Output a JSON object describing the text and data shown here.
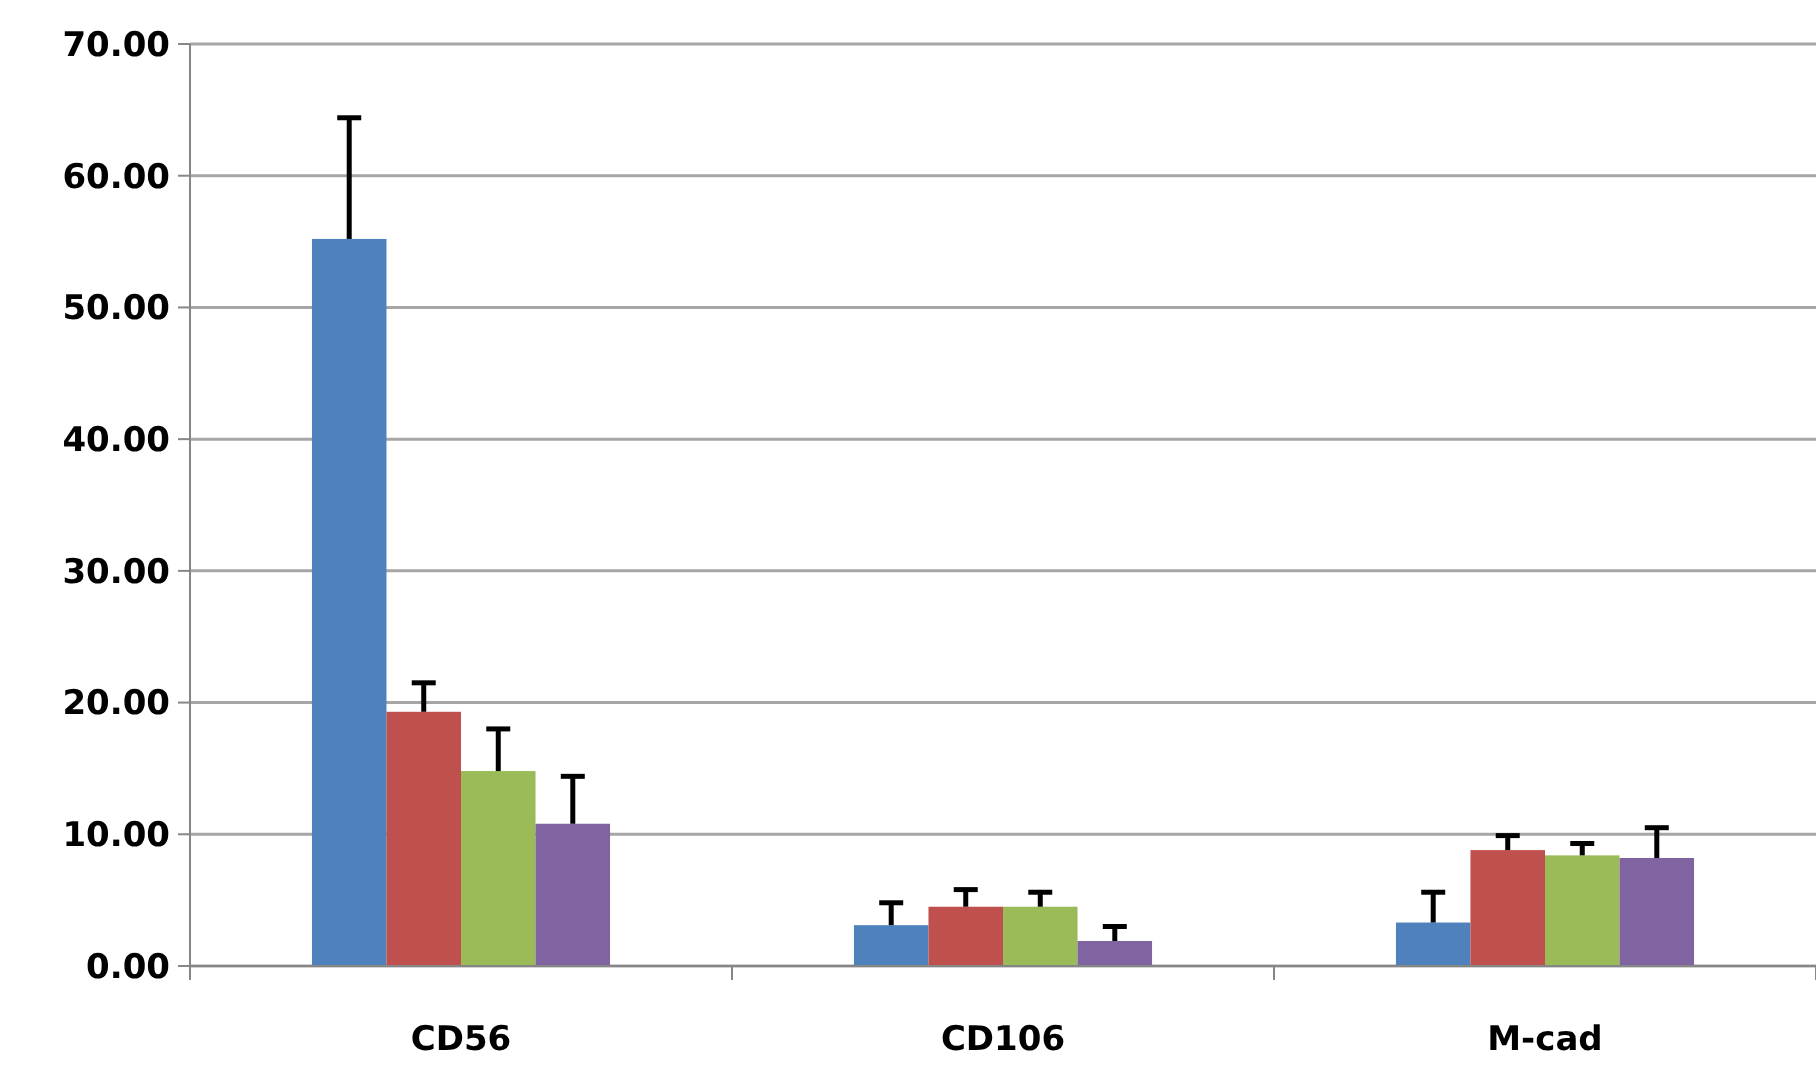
{
  "chart_data": {
    "type": "bar",
    "categories": [
      "CD56",
      "CD106",
      "M-cad"
    ],
    "series": [
      {
        "color": "#4f81bd",
        "values": [
          55.2,
          3.1,
          3.3
        ],
        "errors": [
          [
            55.2,
            64.4
          ],
          [
            3.1,
            4.8
          ],
          [
            3.3,
            5.6
          ]
        ]
      },
      {
        "color": "#c0504d",
        "values": [
          19.3,
          4.5,
          8.8
        ],
        "errors": [
          [
            19.3,
            21.5
          ],
          [
            4.5,
            5.8
          ],
          [
            8.8,
            9.9
          ]
        ]
      },
      {
        "color": "#9bbb59",
        "values": [
          14.8,
          4.5,
          8.4
        ],
        "errors": [
          [
            14.8,
            18.0
          ],
          [
            4.5,
            5.6
          ],
          [
            8.4,
            9.3
          ]
        ]
      },
      {
        "color": "#8064a2",
        "values": [
          10.8,
          1.9,
          8.2
        ],
        "errors": [
          [
            10.8,
            14.4
          ],
          [
            1.9,
            3.0
          ],
          [
            8.2,
            10.5
          ]
        ]
      }
    ],
    "ylim": [
      0,
      70
    ],
    "yticks": [
      {
        "value": 0,
        "label": "0.00"
      },
      {
        "value": 10,
        "label": "10.00"
      },
      {
        "value": 20,
        "label": "20.00"
      },
      {
        "value": 30,
        "label": "30.00"
      },
      {
        "value": 40,
        "label": "40.00"
      },
      {
        "value": 50,
        "label": "50.00"
      },
      {
        "value": 60,
        "label": "60.00"
      },
      {
        "value": 70,
        "label": "70.00"
      }
    ],
    "grid": "y"
  }
}
